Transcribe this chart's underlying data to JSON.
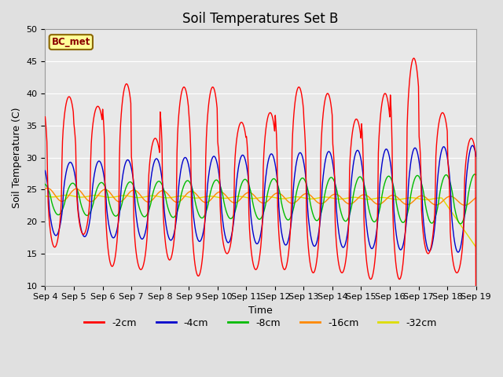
{
  "title": "Soil Temperatures Set B",
  "xlabel": "Time",
  "ylabel": "Soil Temperature (C)",
  "ylim": [
    10,
    50
  ],
  "annotation": "BC_met",
  "series_colors": {
    "-2cm": "#ff0000",
    "-4cm": "#0000cc",
    "-8cm": "#00bb00",
    "-16cm": "#ff8800",
    "-32cm": "#dddd00"
  },
  "xtick_labels": [
    "Sep 4",
    "Sep 5",
    "Sep 6",
    "Sep 7",
    "Sep 8",
    "Sep 9",
    "Sep 10",
    "Sep 11",
    "Sep 12",
    "Sep 13",
    "Sep 14",
    "Sep 15",
    "Sep 16",
    "Sep 17",
    "Sep 18",
    "Sep 19"
  ],
  "ytick_values": [
    10,
    15,
    20,
    25,
    30,
    35,
    40,
    45,
    50
  ],
  "background_color": "#e0e0e0",
  "axes_background": "#e8e8e8",
  "title_fontsize": 12,
  "label_fontsize": 9,
  "tick_fontsize": 8
}
